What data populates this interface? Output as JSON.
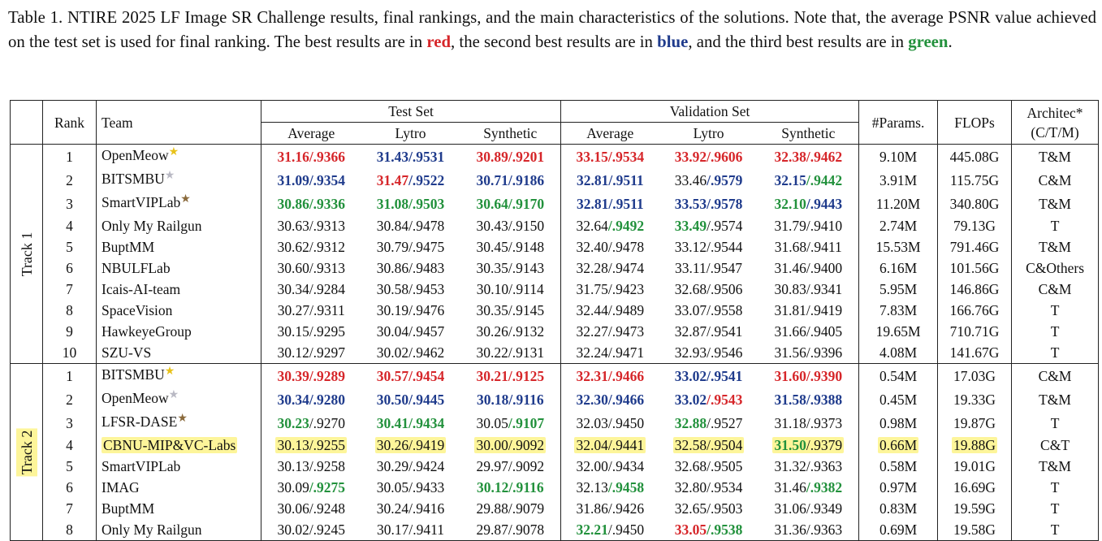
{
  "caption": {
    "part1": "Table 1. NTIRE 2025 LF Image SR Challenge results, final rankings, and the main characteristics of the solutions. Note that, the average PSNR value achieved on the test set is used for final ranking. The best results are in ",
    "red_word": "red",
    "part2": ", the second best results are in ",
    "blue_word": "blue",
    "part3": ", and the third best results are in ",
    "green_word": "green",
    "part4": "."
  },
  "colors": {
    "red": "#d6262a",
    "blue": "#1f3b8c",
    "green": "#22913c",
    "highlight": "#fdf59a"
  },
  "header": {
    "rank": "Rank",
    "team": "Team",
    "test_set": "Test Set",
    "validation_set": "Validation Set",
    "average": "Average",
    "lytro": "Lytro",
    "synthetic": "Synthetic",
    "params": "#Params.",
    "flops": "FLOPs",
    "arch_line1": "Architec*",
    "arch_line2": "(C/T/M)"
  },
  "tracks": [
    {
      "label": "Track 1",
      "rows": [
        {
          "rank": "1",
          "team": "OpenMeow",
          "star": "★",
          "star_color": "#e8c21a",
          "cells": [
            [
              "31.16",
              "r",
              "/.9366",
              "r"
            ],
            [
              "31.43",
              "b",
              "/.9531",
              "b"
            ],
            [
              "30.89",
              "r",
              "/.9201",
              "r"
            ],
            [
              "33.15",
              "r",
              "/.9534",
              "r"
            ],
            [
              "33.92",
              "r",
              "/.9606",
              "r"
            ],
            [
              "32.38",
              "r",
              "/.9462",
              "r"
            ]
          ],
          "params": "9.10M",
          "flops": "445.08G",
          "arch": "T&M"
        },
        {
          "rank": "2",
          "team": "BITSMBU",
          "star": "★",
          "star_color": "#b9b9c4",
          "cells": [
            [
              "31.09",
              "b",
              "/.9354",
              "b"
            ],
            [
              "31.47",
              "r",
              "/.9522",
              "b"
            ],
            [
              "30.71",
              "b",
              "/.9186",
              "b"
            ],
            [
              "32.81",
              "b",
              "/.9511",
              "b"
            ],
            [
              "33.46",
              "",
              "/.9579",
              "b"
            ],
            [
              "32.15",
              "b",
              "/.9442",
              "g"
            ]
          ],
          "params": "3.91M",
          "flops": "115.75G",
          "arch": "C&M"
        },
        {
          "rank": "3",
          "team": "SmartVIPLab",
          "star": "★",
          "star_color": "#8a6a3c",
          "cells": [
            [
              "30.86",
              "g",
              "/.9336",
              "g"
            ],
            [
              "31.08",
              "g",
              "/.9503",
              "g"
            ],
            [
              "30.64",
              "g",
              "/.9170",
              "g"
            ],
            [
              "32.81",
              "b",
              "/.9511",
              "b"
            ],
            [
              "33.53",
              "b",
              "/.9578",
              "b"
            ],
            [
              "32.10",
              "g",
              "/.9443",
              "b"
            ]
          ],
          "params": "11.20M",
          "flops": "340.80G",
          "arch": "T&M"
        },
        {
          "rank": "4",
          "team": "Only My Railgun",
          "star": "",
          "star_color": "",
          "cells": [
            [
              "30.63",
              "",
              "/.9313",
              ""
            ],
            [
              "30.84",
              "",
              "/.9478",
              ""
            ],
            [
              "30.43",
              "",
              "/.9150",
              ""
            ],
            [
              "32.64",
              "",
              "/.9492",
              "g"
            ],
            [
              "33.49",
              "g",
              "/.9574",
              ""
            ],
            [
              "31.79",
              "",
              "/.9410",
              ""
            ]
          ],
          "params": "2.74M",
          "flops": "79.13G",
          "arch": "T"
        },
        {
          "rank": "5",
          "team": "BuptMM",
          "star": "",
          "star_color": "",
          "cells": [
            [
              "30.62",
              "",
              "/.9312",
              ""
            ],
            [
              "30.79",
              "",
              "/.9475",
              ""
            ],
            [
              "30.45",
              "",
              "/.9148",
              ""
            ],
            [
              "32.40",
              "",
              "/.9478",
              ""
            ],
            [
              "33.12",
              "",
              "/.9544",
              ""
            ],
            [
              "31.68",
              "",
              "/.9411",
              ""
            ]
          ],
          "params": "15.53M",
          "flops": "791.46G",
          "arch": "T&M"
        },
        {
          "rank": "6",
          "team": "NBULFLab",
          "star": "",
          "star_color": "",
          "cells": [
            [
              "30.60",
              "",
              "/.9313",
              ""
            ],
            [
              "30.86",
              "",
              "/.9483",
              ""
            ],
            [
              "30.35",
              "",
              "/.9143",
              ""
            ],
            [
              "32.28",
              "",
              "/.9474",
              ""
            ],
            [
              "33.11",
              "",
              "/.9547",
              ""
            ],
            [
              "31.46",
              "",
              "/.9400",
              ""
            ]
          ],
          "params": "6.16M",
          "flops": "101.56G",
          "arch": "C&Others"
        },
        {
          "rank": "7",
          "team": "Icais-AI-team",
          "star": "",
          "star_color": "",
          "cells": [
            [
              "30.34",
              "",
              "/.9284",
              ""
            ],
            [
              "30.58",
              "",
              "/.9453",
              ""
            ],
            [
              "30.10",
              "",
              "/.9114",
              ""
            ],
            [
              "31.75",
              "",
              "/.9423",
              ""
            ],
            [
              "32.68",
              "",
              "/.9506",
              ""
            ],
            [
              "30.83",
              "",
              "/.9341",
              ""
            ]
          ],
          "params": "5.95M",
          "flops": "146.86G",
          "arch": "C&M"
        },
        {
          "rank": "8",
          "team": "SpaceVision",
          "star": "",
          "star_color": "",
          "cells": [
            [
              "30.27",
              "",
              "/.9311",
              ""
            ],
            [
              "30.19",
              "",
              "/.9476",
              ""
            ],
            [
              "30.35",
              "",
              "/.9145",
              ""
            ],
            [
              "32.44",
              "",
              "/.9489",
              ""
            ],
            [
              "33.07",
              "",
              "/.9558",
              ""
            ],
            [
              "31.81",
              "",
              "/.9419",
              ""
            ]
          ],
          "params": "7.83M",
          "flops": "166.76G",
          "arch": "T"
        },
        {
          "rank": "9",
          "team": "HawkeyeGroup",
          "star": "",
          "star_color": "",
          "cells": [
            [
              "30.15",
              "",
              "/.9295",
              ""
            ],
            [
              "30.04",
              "",
              "/.9457",
              ""
            ],
            [
              "30.26",
              "",
              "/.9132",
              ""
            ],
            [
              "32.27",
              "",
              "/.9473",
              ""
            ],
            [
              "32.87",
              "",
              "/.9541",
              ""
            ],
            [
              "31.66",
              "",
              "/.9405",
              ""
            ]
          ],
          "params": "19.65M",
          "flops": "710.71G",
          "arch": "T"
        },
        {
          "rank": "10",
          "team": "SZU-VS",
          "star": "",
          "star_color": "",
          "cells": [
            [
              "30.12",
              "",
              "/.9297",
              ""
            ],
            [
              "30.02",
              "",
              "/.9462",
              ""
            ],
            [
              "30.22",
              "",
              "/.9131",
              ""
            ],
            [
              "32.24",
              "",
              "/.9471",
              ""
            ],
            [
              "32.93",
              "",
              "/.9546",
              ""
            ],
            [
              "31.56",
              "",
              "/.9396",
              ""
            ]
          ],
          "params": "4.08M",
          "flops": "141.67G",
          "arch": "T"
        }
      ]
    },
    {
      "label": "Track 2",
      "rows": [
        {
          "rank": "1",
          "team": "BITSMBU",
          "star": "★",
          "star_color": "#e8c21a",
          "cells": [
            [
              "30.39",
              "r",
              "/.9289",
              "r"
            ],
            [
              "30.57",
              "r",
              "/.9454",
              "r"
            ],
            [
              "30.21",
              "r",
              "/.9125",
              "r"
            ],
            [
              "32.31",
              "r",
              "/.9466",
              "r"
            ],
            [
              "33.02",
              "b",
              "/.9541",
              "b"
            ],
            [
              "31.60",
              "r",
              "/.9390",
              "r"
            ]
          ],
          "params": "0.54M",
          "flops": "17.03G",
          "arch": "C&M"
        },
        {
          "rank": "2",
          "team": "OpenMeow",
          "star": "★",
          "star_color": "#b9b9c4",
          "cells": [
            [
              "30.34",
              "b",
              "/.9280",
              "b"
            ],
            [
              "30.50",
              "b",
              "/.9445",
              "b"
            ],
            [
              "30.18",
              "b",
              "/.9116",
              "b"
            ],
            [
              "32.30",
              "b",
              "/.9466",
              "b"
            ],
            [
              "33.02",
              "b",
              "/.9543",
              "r"
            ],
            [
              "31.58",
              "b",
              "/.9388",
              "b"
            ]
          ],
          "params": "0.45M",
          "flops": "19.33G",
          "arch": "T&M"
        },
        {
          "rank": "3",
          "team": "LFSR-DASE",
          "star": "★",
          "star_color": "#8a6a3c",
          "cells": [
            [
              "30.23",
              "g",
              "/.9270",
              ""
            ],
            [
              "30.41",
              "g",
              "/.9434",
              "g"
            ],
            [
              "30.05",
              "",
              "/.9107",
              "g"
            ],
            [
              "32.03",
              "",
              "/.9450",
              ""
            ],
            [
              "32.88",
              "g",
              "/.9527",
              ""
            ],
            [
              "31.18",
              "",
              "/.9373",
              ""
            ]
          ],
          "params": "0.98M",
          "flops": "19.87G",
          "arch": "T"
        },
        {
          "rank": "4",
          "team": "CBNU-MIP&VC-Labs",
          "star": "",
          "star_color": "",
          "hl": true,
          "cells": [
            [
              "30.13",
              "",
              "/.9255",
              ""
            ],
            [
              "30.26",
              "",
              "/.9419",
              ""
            ],
            [
              "30.00",
              "",
              "/.9092",
              ""
            ],
            [
              "32.04",
              "",
              "/.9441",
              ""
            ],
            [
              "32.58",
              "",
              "/.9504",
              ""
            ],
            [
              "31.50",
              "g",
              "/.9379",
              ""
            ]
          ],
          "params": "0.66M",
          "flops": "19.88G",
          "arch": "C&T"
        },
        {
          "rank": "5",
          "team": "SmartVIPLab",
          "star": "",
          "star_color": "",
          "cells": [
            [
              "30.13",
              "",
              "/.9258",
              ""
            ],
            [
              "30.29",
              "",
              "/.9424",
              ""
            ],
            [
              "29.97",
              "",
              "/.9092",
              ""
            ],
            [
              "32.00",
              "",
              "/.9434",
              ""
            ],
            [
              "32.68",
              "",
              "/.9505",
              ""
            ],
            [
              "31.32",
              "",
              "/.9363",
              ""
            ]
          ],
          "params": "0.58M",
          "flops": "19.01G",
          "arch": "T&M"
        },
        {
          "rank": "6",
          "team": "IMAG",
          "star": "",
          "star_color": "",
          "cells": [
            [
              "30.09",
              "",
              "/.9275",
              "g"
            ],
            [
              "30.05",
              "",
              "/.9433",
              ""
            ],
            [
              "30.12",
              "g",
              "/.9116",
              "g"
            ],
            [
              "32.13",
              "",
              "/.9458",
              "g"
            ],
            [
              "32.80",
              "",
              "/.9534",
              ""
            ],
            [
              "31.46",
              "",
              "/.9382",
              "g"
            ]
          ],
          "params": "0.97M",
          "flops": "16.69G",
          "arch": "T"
        },
        {
          "rank": "7",
          "team": "BuptMM",
          "star": "",
          "star_color": "",
          "cells": [
            [
              "30.06",
              "",
              "/.9248",
              ""
            ],
            [
              "30.24",
              "",
              "/.9416",
              ""
            ],
            [
              "29.88",
              "",
              "/.9079",
              ""
            ],
            [
              "31.86",
              "",
              "/.9426",
              ""
            ],
            [
              "32.65",
              "",
              "/.9503",
              ""
            ],
            [
              "31.06",
              "",
              "/.9349",
              ""
            ]
          ],
          "params": "0.83M",
          "flops": "19.59G",
          "arch": "T"
        },
        {
          "rank": "8",
          "team": "Only My Railgun",
          "star": "",
          "star_color": "",
          "cells": [
            [
              "30.02",
              "",
              "/.9245",
              ""
            ],
            [
              "30.17",
              "",
              "/.9411",
              ""
            ],
            [
              "29.87",
              "",
              "/.9078",
              ""
            ],
            [
              "32.21",
              "g",
              "/.9450",
              ""
            ],
            [
              "33.05",
              "r",
              "/.9538",
              "g"
            ],
            [
              "31.36",
              "",
              "/.9363",
              ""
            ]
          ],
          "params": "0.69M",
          "flops": "19.58G",
          "arch": "T"
        }
      ]
    }
  ]
}
